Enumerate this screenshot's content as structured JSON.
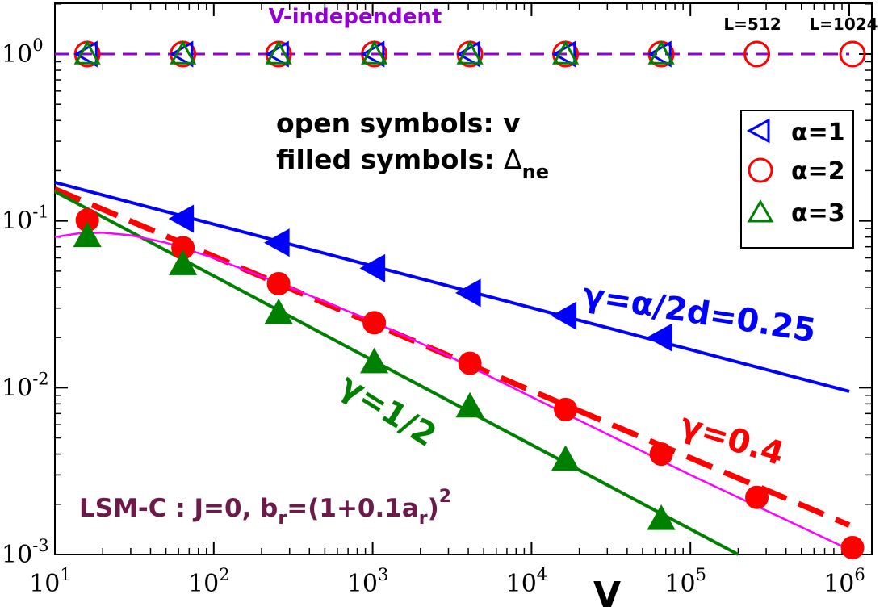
{
  "chart_data": {
    "type": "scatter",
    "xlabel": "V",
    "x_scale": "log",
    "y_scale": "log",
    "xlim": [
      10,
      1000000
    ],
    "ylim": [
      0.001,
      3
    ],
    "x_ticks": [
      {
        "value": 10,
        "base": "10",
        "exp": "1"
      },
      {
        "value": 100,
        "base": "10",
        "exp": "2"
      },
      {
        "value": 1000,
        "base": "10",
        "exp": "3"
      },
      {
        "value": 10000,
        "base": "10",
        "exp": "4"
      },
      {
        "value": 100000,
        "base": "10",
        "exp": "5"
      },
      {
        "value": 1000000,
        "base": "10",
        "exp": "6"
      }
    ],
    "y_ticks": [
      {
        "value": 0.001,
        "base": "10",
        "exp": "-3"
      },
      {
        "value": 0.01,
        "base": "10",
        "exp": "-2"
      },
      {
        "value": 0.1,
        "base": "10",
        "exp": "-1"
      },
      {
        "value": 1,
        "base": "10",
        "exp": "0"
      }
    ],
    "grid": false,
    "legend": {
      "position": "top-right",
      "entries": [
        {
          "label": "α=1",
          "symbol": "triangle-left",
          "color": "#0000ff"
        },
        {
          "label": "α=2",
          "symbol": "circle",
          "color": "#ff0000"
        },
        {
          "label": "α=3",
          "symbol": "triangle-up",
          "color": "#008000"
        }
      ]
    },
    "series": [
      {
        "name": "α=1",
        "quantity": "v",
        "symbol": "triangle-left",
        "filled": false,
        "color": "#0000ff",
        "x": [
          16,
          64,
          256,
          1024,
          4096,
          16384,
          65536
        ],
        "y": [
          1,
          1,
          1,
          1,
          1,
          1,
          1
        ]
      },
      {
        "name": "α=2",
        "quantity": "v",
        "symbol": "circle",
        "filled": false,
        "color": "#ff0000",
        "x": [
          16,
          64,
          256,
          1024,
          4096,
          16384,
          65536,
          262144,
          1048576
        ],
        "y": [
          1,
          1,
          1,
          1,
          1,
          1,
          1,
          1,
          1
        ]
      },
      {
        "name": "α=3",
        "quantity": "v",
        "symbol": "triangle-up",
        "filled": false,
        "color": "#008000",
        "x": [
          16,
          64,
          256,
          1024,
          4096,
          16384,
          65536
        ],
        "y": [
          1,
          1,
          1,
          1,
          1,
          1,
          1
        ]
      },
      {
        "name": "α=1",
        "quantity": "Δne",
        "symbol": "triangle-left",
        "filled": true,
        "color": "#0000ff",
        "x": [
          64,
          256,
          1024,
          4096,
          16384,
          65536
        ],
        "y": [
          0.103,
          0.074,
          0.052,
          0.037,
          0.027,
          0.02
        ]
      },
      {
        "name": "α=2",
        "quantity": "Δne",
        "symbol": "circle",
        "filled": true,
        "color": "#ff0000",
        "x": [
          16,
          64,
          256,
          1024,
          4096,
          16384,
          65536,
          262144,
          1048576
        ],
        "y": [
          0.101,
          0.069,
          0.042,
          0.0245,
          0.014,
          0.0074,
          0.004,
          0.0022,
          0.0011
        ]
      },
      {
        "name": "α=3",
        "quantity": "Δne",
        "symbol": "triangle-up",
        "filled": true,
        "color": "#008000",
        "x": [
          16,
          64,
          256,
          1024,
          4096,
          16384,
          65536
        ],
        "y": [
          0.081,
          0.055,
          0.028,
          0.0142,
          0.0077,
          0.0037,
          0.00163
        ]
      }
    ],
    "lines": [
      {
        "label": "V-independent",
        "color": "#9400d3",
        "dash": true,
        "x": [
          10,
          1000000
        ],
        "y": [
          1,
          1
        ]
      },
      {
        "label": "γ=α/2d=0.25",
        "color": "#0000ff",
        "dash": false,
        "x": [
          10,
          1000000
        ],
        "y": [
          0.17,
          0.0095
        ]
      },
      {
        "label": "γ=0.4",
        "color": "#ff0000",
        "dash": true,
        "x": [
          10,
          1000000
        ],
        "y": [
          0.155,
          0.0015
        ]
      },
      {
        "label": "γ=1/2",
        "color": "#008000",
        "dash": false,
        "x": [
          10,
          200000
        ],
        "y": [
          0.15,
          0.001
        ]
      },
      {
        "label": "",
        "color": "#ff00ff",
        "dash": false,
        "x": [
          10,
          14,
          20,
          30,
          50,
          100,
          300,
          1000,
          3000,
          10000,
          100000,
          1000000
        ],
        "y": [
          0.08,
          0.084,
          0.085,
          0.082,
          0.074,
          0.06,
          0.04,
          0.025,
          0.0155,
          0.0088,
          0.003,
          0.00107
        ]
      }
    ],
    "annotations": {
      "v_independent": "V-independent",
      "l512": "L=512",
      "l1024": "L=1024",
      "open_symbols": "open symbols: v",
      "filled_prefix": "filled symbols: ",
      "delta": "Δ",
      "delta_sub": "ne",
      "gamma_blue": "γ=α/2d=0.25",
      "gamma_red": "γ=0.4",
      "gamma_green": "γ=1/2",
      "lsm_main": "LSM-C : J=0, b",
      "lsm_sub_r": "r",
      "lsm_eq": "=(1+0.1a",
      "lsm_sub_r2": "r",
      "lsm_close": ")",
      "lsm_sup": "2"
    },
    "colors": {
      "blue": "#0000ff",
      "red": "#ff0000",
      "green": "#008000",
      "magenta": "#ff00ff",
      "purple": "#9400d3",
      "maroon": "#6b1a4a"
    }
  }
}
